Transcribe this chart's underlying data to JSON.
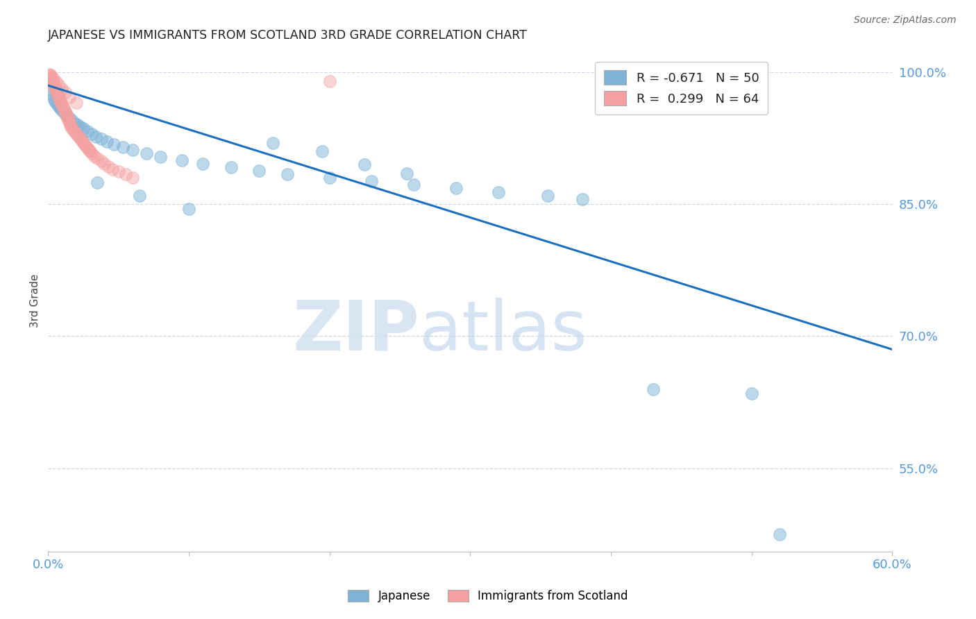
{
  "title": "JAPANESE VS IMMIGRANTS FROM SCOTLAND 3RD GRADE CORRELATION CHART",
  "source": "Source: ZipAtlas.com",
  "ylabel": "3rd Grade",
  "xlim": [
    0.0,
    0.6
  ],
  "ylim": [
    0.455,
    1.025
  ],
  "ytick_positions": [
    1.0,
    0.85,
    0.7,
    0.55
  ],
  "ytick_labels": [
    "100.0%",
    "85.0%",
    "70.0%",
    "55.0%"
  ],
  "legend_blue": "R = -0.671   N = 50",
  "legend_pink": "R =  0.299   N = 64",
  "blue_color": "#7EB3D8",
  "pink_color": "#F4A0A0",
  "line_color": "#1B6FBF",
  "axis_color": "#5599DD",
  "grid_color": "#C8D8E8",
  "reg_line_x": [
    0.0,
    0.6
  ],
  "reg_line_y": [
    0.985,
    0.685
  ],
  "blue_x": [
    0.002,
    0.003,
    0.004,
    0.005,
    0.006,
    0.007,
    0.008,
    0.009,
    0.01,
    0.011,
    0.012,
    0.013,
    0.015,
    0.017,
    0.019,
    0.021,
    0.023,
    0.025,
    0.028,
    0.031,
    0.034,
    0.038,
    0.042,
    0.047,
    0.053,
    0.06,
    0.07,
    0.08,
    0.095,
    0.11,
    0.13,
    0.15,
    0.17,
    0.2,
    0.23,
    0.26,
    0.29,
    0.32,
    0.355,
    0.38,
    0.16,
    0.195,
    0.225,
    0.255,
    0.43,
    0.5,
    0.52,
    0.035,
    0.065,
    0.1
  ],
  "blue_y": [
    0.98,
    0.975,
    0.97,
    0.967,
    0.965,
    0.963,
    0.961,
    0.959,
    0.957,
    0.955,
    0.953,
    0.951,
    0.948,
    0.945,
    0.942,
    0.94,
    0.938,
    0.936,
    0.933,
    0.93,
    0.927,
    0.924,
    0.921,
    0.918,
    0.915,
    0.912,
    0.908,
    0.904,
    0.9,
    0.896,
    0.892,
    0.888,
    0.884,
    0.88,
    0.876,
    0.872,
    0.868,
    0.864,
    0.86,
    0.856,
    0.92,
    0.91,
    0.895,
    0.885,
    0.64,
    0.635,
    0.475,
    0.875,
    0.86,
    0.845
  ],
  "pink_x": [
    0.001,
    0.002,
    0.002,
    0.003,
    0.003,
    0.004,
    0.004,
    0.005,
    0.005,
    0.006,
    0.006,
    0.007,
    0.007,
    0.008,
    0.008,
    0.009,
    0.009,
    0.01,
    0.01,
    0.011,
    0.011,
    0.012,
    0.012,
    0.013,
    0.013,
    0.014,
    0.014,
    0.015,
    0.015,
    0.016,
    0.016,
    0.017,
    0.018,
    0.019,
    0.02,
    0.021,
    0.022,
    0.023,
    0.024,
    0.025,
    0.026,
    0.027,
    0.028,
    0.029,
    0.03,
    0.031,
    0.033,
    0.035,
    0.038,
    0.04,
    0.043,
    0.046,
    0.05,
    0.055,
    0.06,
    0.002,
    0.004,
    0.006,
    0.008,
    0.01,
    0.012,
    0.015,
    0.02,
    0.2
  ],
  "pink_y": [
    0.998,
    0.996,
    0.994,
    0.992,
    0.99,
    0.988,
    0.986,
    0.984,
    0.982,
    0.98,
    0.978,
    0.976,
    0.974,
    0.972,
    0.97,
    0.968,
    0.966,
    0.964,
    0.962,
    0.96,
    0.958,
    0.956,
    0.954,
    0.952,
    0.95,
    0.948,
    0.946,
    0.944,
    0.942,
    0.94,
    0.938,
    0.936,
    0.934,
    0.932,
    0.93,
    0.928,
    0.926,
    0.924,
    0.922,
    0.92,
    0.918,
    0.916,
    0.914,
    0.912,
    0.91,
    0.908,
    0.905,
    0.902,
    0.899,
    0.896,
    0.893,
    0.89,
    0.887,
    0.884,
    0.88,
    0.997,
    0.993,
    0.989,
    0.985,
    0.981,
    0.977,
    0.972,
    0.965,
    0.99
  ]
}
